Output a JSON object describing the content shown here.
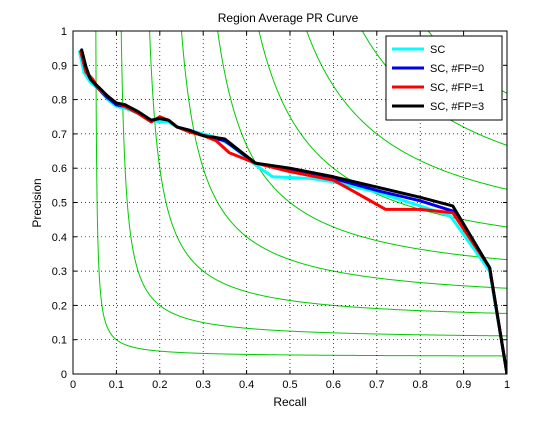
{
  "chart_data": {
    "type": "line",
    "title": "Region Average PR Curve",
    "xlabel": "Recall",
    "ylabel": "Precision",
    "xlim": [
      0,
      1
    ],
    "ylim": [
      0,
      1
    ],
    "xticks": [
      0,
      0.1,
      0.2,
      0.3,
      0.4,
      0.5,
      0.6,
      0.7,
      0.8,
      0.9,
      1
    ],
    "yticks": [
      0,
      0.1,
      0.2,
      0.3,
      0.4,
      0.5,
      0.6,
      0.7,
      0.8,
      0.9,
      1
    ],
    "xtick_labels": [
      "0",
      "0.1",
      "0.2",
      "0.3",
      "0.4",
      "0.5",
      "0.6",
      "0.7",
      "0.8",
      "0.9",
      "1"
    ],
    "ytick_labels": [
      "0",
      "0.1",
      "0.2",
      "0.3",
      "0.4",
      "0.5",
      "0.6",
      "0.7",
      "0.8",
      "0.9",
      "1"
    ],
    "grid": true,
    "grid_style": "dotted",
    "legend_position": "top-right",
    "iso_f_contours": {
      "color": "#00cc00",
      "f_values": [
        0.1,
        0.2,
        0.3,
        0.4,
        0.5,
        0.6,
        0.7,
        0.8,
        0.9
      ]
    },
    "series": [
      {
        "name": "SC",
        "color": "#00ffff",
        "x": [
          0.015,
          0.025,
          0.04,
          0.06,
          0.08,
          0.1,
          0.12,
          0.15,
          0.18,
          0.2,
          0.22,
          0.24,
          0.27,
          0.3,
          0.33,
          0.36,
          0.39,
          0.42,
          0.46,
          0.55,
          0.6,
          0.7,
          0.8,
          0.87,
          0.96,
          1.0
        ],
        "y": [
          0.94,
          0.88,
          0.85,
          0.83,
          0.8,
          0.78,
          0.775,
          0.76,
          0.74,
          0.735,
          0.735,
          0.72,
          0.71,
          0.7,
          0.69,
          0.67,
          0.64,
          0.61,
          0.575,
          0.57,
          0.56,
          0.53,
          0.49,
          0.46,
          0.3,
          0.0
        ]
      },
      {
        "name": "SC, #FP=0",
        "color": "#0000ee",
        "x": [
          0.018,
          0.028,
          0.04,
          0.06,
          0.08,
          0.1,
          0.12,
          0.15,
          0.18,
          0.2,
          0.22,
          0.24,
          0.27,
          0.3,
          0.35,
          0.42,
          0.5,
          0.6,
          0.7,
          0.8,
          0.875,
          0.96,
          1.0
        ],
        "y": [
          0.94,
          0.89,
          0.86,
          0.83,
          0.805,
          0.785,
          0.78,
          0.76,
          0.74,
          0.745,
          0.74,
          0.72,
          0.71,
          0.695,
          0.68,
          0.615,
          0.595,
          0.57,
          0.535,
          0.505,
          0.475,
          0.31,
          0.0
        ]
      },
      {
        "name": "SC, #FP=1",
        "color": "#ff0000",
        "x": [
          0.018,
          0.03,
          0.045,
          0.06,
          0.08,
          0.1,
          0.12,
          0.15,
          0.18,
          0.2,
          0.21,
          0.22,
          0.24,
          0.27,
          0.3,
          0.33,
          0.36,
          0.42,
          0.5,
          0.6,
          0.65,
          0.72,
          0.8,
          0.875,
          0.96,
          1.0
        ],
        "y": [
          0.94,
          0.88,
          0.86,
          0.83,
          0.81,
          0.79,
          0.78,
          0.76,
          0.735,
          0.75,
          0.745,
          0.74,
          0.72,
          0.705,
          0.695,
          0.68,
          0.645,
          0.615,
          0.59,
          0.565,
          0.53,
          0.48,
          0.48,
          0.47,
          0.31,
          0.0
        ]
      },
      {
        "name": "SC, #FP=3",
        "color": "#000000",
        "x": [
          0.02,
          0.03,
          0.04,
          0.06,
          0.08,
          0.1,
          0.12,
          0.15,
          0.18,
          0.2,
          0.22,
          0.24,
          0.27,
          0.3,
          0.35,
          0.42,
          0.5,
          0.6,
          0.7,
          0.8,
          0.875,
          0.96,
          1.0
        ],
        "y": [
          0.945,
          0.895,
          0.86,
          0.835,
          0.81,
          0.79,
          0.785,
          0.765,
          0.74,
          0.745,
          0.74,
          0.72,
          0.71,
          0.695,
          0.685,
          0.615,
          0.6,
          0.575,
          0.545,
          0.515,
          0.49,
          0.31,
          0.0
        ]
      }
    ]
  }
}
